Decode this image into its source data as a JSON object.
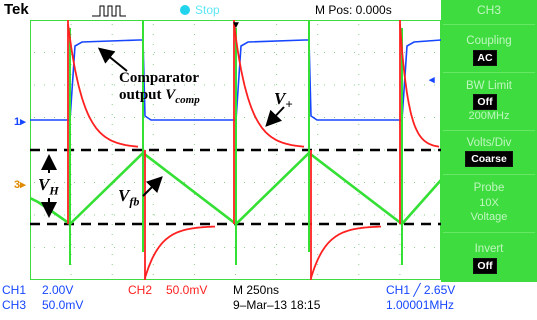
{
  "header": {
    "brand": "Tek",
    "run_state": "Stop",
    "mpos": "M Pos: 0.000s"
  },
  "side_menu": {
    "channel": "CH3",
    "coupling_label": "Coupling",
    "coupling_value": "AC",
    "bw_label": "BW Limit",
    "bw_value": "Off",
    "bw_sub": "200MHz",
    "volts_label": "Volts/Div",
    "volts_value": "Coarse",
    "probe_label": "Probe",
    "probe_sub1": "10X",
    "probe_sub2": "Voltage",
    "invert_label": "Invert",
    "invert_value": "Off"
  },
  "status": {
    "ch1": "CH1",
    "ch1_scale": "2.00V",
    "ch2": "CH2",
    "ch2_scale": "50.0mV",
    "ch3": "CH3",
    "ch3_scale": "50.0mV",
    "timebase": "M 250ns",
    "date": "9–Mar–13 18:15",
    "trigger": "CH1 ╱ 2.65V",
    "freq": "1.00001MHz"
  },
  "markers": {
    "ch1": "1",
    "ch3": "3"
  },
  "annotations": {
    "comp_line1": "Comparator",
    "comp_line2_prefix": "output ",
    "comp_var": "V",
    "comp_sub": "comp",
    "vplus_var": "V",
    "vplus_sub": "+",
    "vh_var": "V",
    "vh_sub": "H",
    "vfb_var": "V",
    "vfb_sub": "fb"
  },
  "colors": {
    "ch1": "#1646ff",
    "ch2": "#ff2020",
    "ch3": "#33e033",
    "menu": "#3fdc3f"
  }
}
